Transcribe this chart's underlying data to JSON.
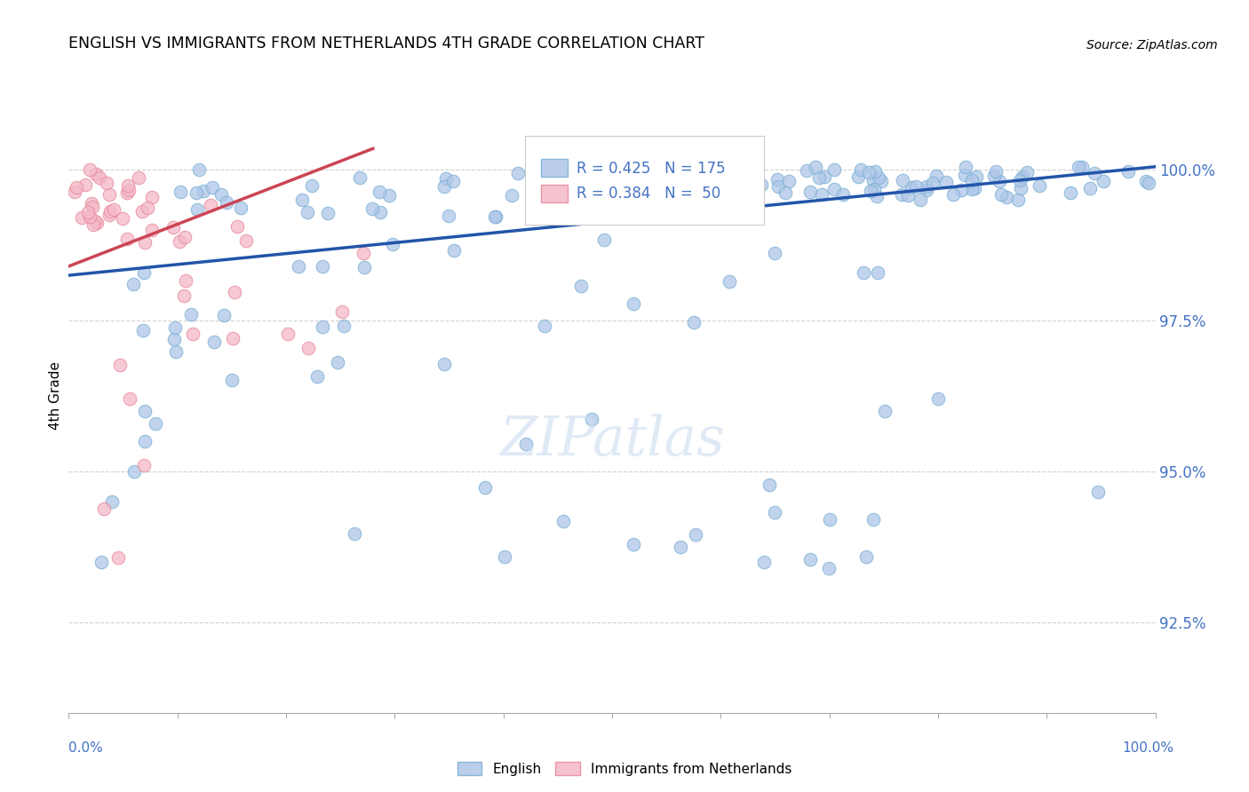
{
  "title": "ENGLISH VS IMMIGRANTS FROM NETHERLANDS 4TH GRADE CORRELATION CHART",
  "source": "Source: ZipAtlas.com",
  "ylabel": "4th Grade",
  "y_ticks": [
    92.5,
    95.0,
    97.5,
    100.0
  ],
  "y_tick_labels": [
    "92.5%",
    "95.0%",
    "97.5%",
    "100.0%"
  ],
  "x_range": [
    0.0,
    1.0
  ],
  "y_min": 91.0,
  "y_max": 101.5,
  "english_color": "#aec6e8",
  "netherlands_color": "#f4b8c8",
  "english_edge_color": "#7aafd4",
  "netherlands_edge_color": "#e8899a",
  "english_line_color": "#2255aa",
  "netherlands_line_color": "#cc4455",
  "tick_label_color": "#4472c4",
  "watermark_color": "#ccddf0",
  "R_english": 0.425,
  "N_english": 175,
  "R_netherlands": 0.384,
  "N_netherlands": 50,
  "eng_line_x0": 0.0,
  "eng_line_y0": 98.25,
  "eng_line_x1": 1.0,
  "eng_line_y1": 100.05,
  "neth_line_x0": 0.0,
  "neth_line_y0": 98.4,
  "neth_line_x1": 0.28,
  "neth_line_y1": 100.35
}
